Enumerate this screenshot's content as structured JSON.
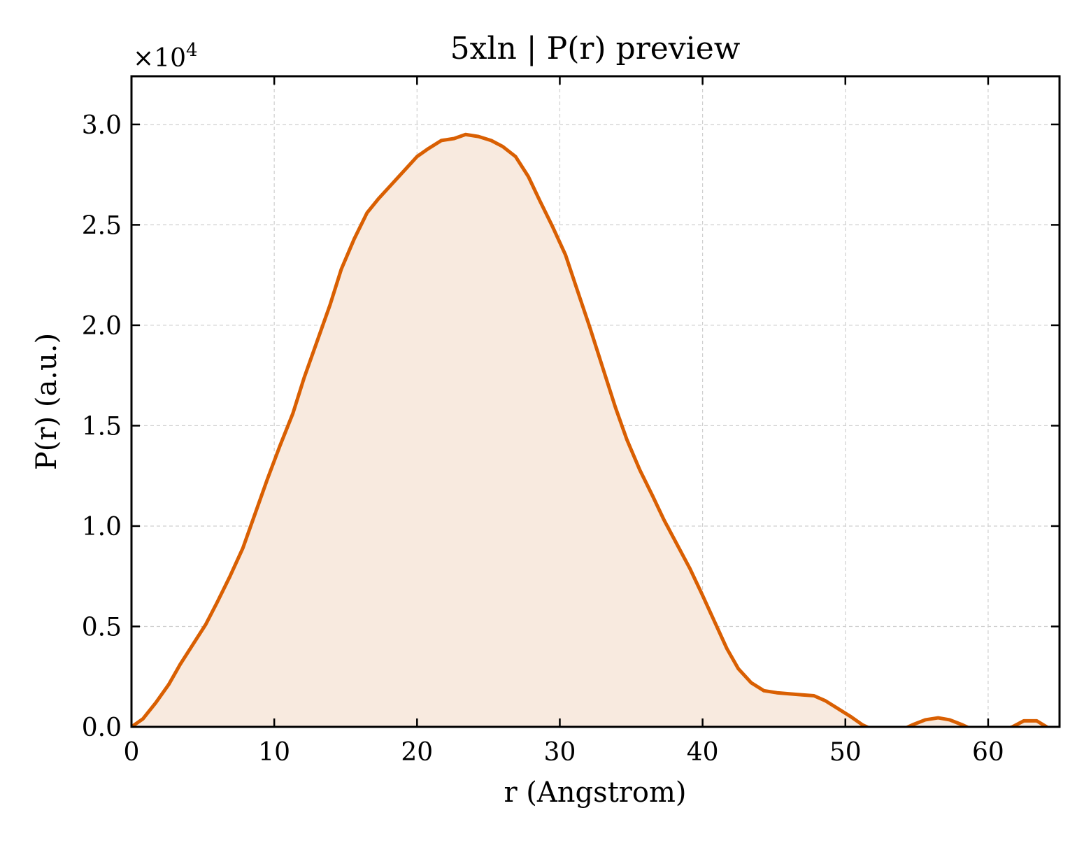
{
  "chart_data": {
    "type": "area",
    "title": "5xln | P(r) preview",
    "xlabel": "r (Angstrom)",
    "ylabel": "P(r) (a.u.)",
    "y_multiplier": "×10",
    "y_multiplier_exp": "4",
    "xlim": [
      0,
      65
    ],
    "ylim": [
      0,
      3.24
    ],
    "y_scale_factor": 10000,
    "xticks": [
      0,
      10,
      20,
      30,
      40,
      50,
      60
    ],
    "xtick_labels": [
      "0",
      "10",
      "20",
      "30",
      "40",
      "50",
      "60"
    ],
    "yticks": [
      0.0,
      0.5,
      1.0,
      1.5,
      2.0,
      2.5,
      3.0
    ],
    "ytick_labels": [
      "0.0",
      "0.5",
      "1.0",
      "1.5",
      "2.0",
      "2.5",
      "3.0"
    ],
    "grid": true,
    "line_color": "#d95f02",
    "fill_color": "#f8eadf",
    "series": [
      {
        "x": [
          0,
          0.8,
          1.7,
          2.6,
          3.4,
          4.3,
          5.2,
          6.0,
          6.9,
          7.8,
          8.6,
          9.5,
          10.4,
          11.3,
          12.1,
          13.0,
          13.9,
          14.7,
          15.6,
          16.5,
          17.3,
          18.2,
          19.1,
          20.0,
          20.8,
          21.7,
          22.6,
          23.4,
          24.3,
          25.2,
          26.0,
          26.9,
          27.8,
          28.6,
          29.5,
          30.4,
          31.2,
          32.1,
          33.0,
          33.9,
          34.7,
          35.6,
          36.5,
          37.3,
          38.2,
          39.1,
          39.9,
          40.8,
          41.7,
          42.5,
          43.4,
          44.3,
          45.2,
          46.0,
          46.9,
          47.8,
          48.6,
          49.5,
          50.4,
          51.2,
          52.1,
          53.0,
          53.8,
          54.7,
          55.6,
          56.5,
          57.3,
          58.2,
          59.1,
          59.9,
          60.8,
          61.7,
          62.5,
          63.4,
          64.1
        ],
        "y": [
          0.0,
          0.04,
          0.12,
          0.21,
          0.31,
          0.41,
          0.51,
          0.62,
          0.75,
          0.89,
          1.05,
          1.23,
          1.4,
          1.56,
          1.74,
          1.92,
          2.1,
          2.28,
          2.43,
          2.56,
          2.63,
          2.7,
          2.77,
          2.84,
          2.88,
          2.92,
          2.93,
          2.95,
          2.94,
          2.92,
          2.89,
          2.84,
          2.74,
          2.62,
          2.49,
          2.35,
          2.18,
          1.99,
          1.79,
          1.59,
          1.43,
          1.28,
          1.15,
          1.03,
          0.91,
          0.79,
          0.67,
          0.53,
          0.39,
          0.29,
          0.22,
          0.18,
          0.17,
          0.165,
          0.16,
          0.155,
          0.13,
          0.09,
          0.05,
          0.01,
          -0.02,
          -0.03,
          -0.02,
          0.01,
          0.035,
          0.045,
          0.035,
          0.01,
          -0.02,
          -0.03,
          -0.02,
          0.0,
          0.03,
          0.03,
          0.0
        ]
      }
    ]
  }
}
